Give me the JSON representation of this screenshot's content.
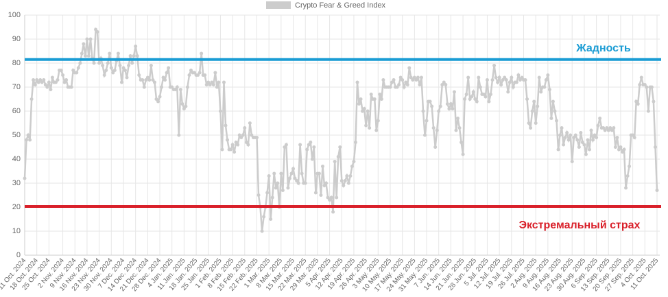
{
  "chart_data": {
    "type": "line",
    "legend": "Crypto Fear & Greed Index",
    "color": "#cccccc",
    "ylim": [
      0,
      100
    ],
    "yticks": [
      0,
      10,
      20,
      30,
      40,
      50,
      60,
      70,
      80,
      90,
      100
    ],
    "grid": true,
    "annotations": [
      {
        "text": "Жадность",
        "value": 81.5,
        "color": "#1a9cd4"
      },
      {
        "text": "Экстремальный страх",
        "value": 20.3,
        "color": "#d9202a"
      }
    ],
    "categories": [
      "11 Oct. 2024",
      null,
      null,
      null,
      null,
      null,
      null,
      "18 Oct. 2024",
      null,
      null,
      null,
      null,
      null,
      null,
      "25 Oct. 2024",
      null,
      null,
      null,
      null,
      null,
      null,
      null,
      "2 Nov. 2024",
      null,
      null,
      null,
      null,
      null,
      null,
      "9 Nov. 2024",
      null,
      null,
      null,
      null,
      null,
      null,
      "16 Nov. 2024",
      null,
      null,
      null,
      null,
      null,
      null,
      "23 Nov. 2024",
      null,
      null,
      null,
      null,
      null,
      null,
      "30 Nov. 2024",
      null,
      null,
      null,
      null,
      null,
      null,
      "7 Dec. 2024",
      null,
      null,
      null,
      null,
      null,
      null,
      "14 Dec. 2024",
      null,
      null,
      null,
      null,
      null,
      null,
      "21 Dec. 2024",
      null,
      null,
      null,
      null,
      null,
      null,
      "28 Dec. 2024",
      null,
      null,
      null,
      null,
      null,
      null,
      "4 Jan. 2025",
      null,
      null,
      null,
      null,
      null,
      null,
      "11 Jan. 2025",
      null,
      null,
      null,
      null,
      null,
      null,
      "18 Jan. 2025",
      null,
      null,
      null,
      null,
      null,
      null,
      "25 Jan. 2025",
      null,
      null,
      null,
      null,
      null,
      null,
      "1 Feb. 2025",
      null,
      null,
      null,
      null,
      null,
      null,
      "8 Feb. 2025",
      null,
      null,
      null,
      null,
      null,
      null,
      "15 Feb. 2025",
      null,
      null,
      null,
      null,
      null,
      null,
      "22 Feb. 2025",
      null,
      null,
      null,
      null,
      null,
      null,
      "1 Mar. 2025",
      null,
      null,
      null,
      null,
      null,
      null,
      "8 Mar. 2025",
      null,
      null,
      null,
      null,
      null,
      null,
      "15 Mar. 2025",
      null,
      null,
      null,
      null,
      null,
      null,
      "22 Mar. 2025",
      null,
      null,
      null,
      null,
      null,
      null,
      "29 Mar. 2025",
      null,
      null,
      null,
      null,
      null,
      null,
      "5 Apr. 2025",
      null,
      null,
      null,
      null,
      null,
      null,
      "12 Apr. 2025",
      null,
      null,
      null,
      null,
      null,
      null,
      "19 Apr. 2025",
      null,
      null,
      null,
      null,
      null,
      null,
      "26 Apr. 2025",
      null,
      null,
      null,
      null,
      null,
      null,
      "3 May. 2025",
      null,
      null,
      null,
      null,
      null,
      null,
      "10 May. 2025",
      null,
      null,
      null,
      null,
      null,
      null,
      "17 May. 2025",
      null,
      null,
      null,
      null,
      null,
      null,
      "24 May. 2025",
      null,
      null,
      null,
      null,
      null,
      null,
      "31 May. 2025",
      null,
      null,
      null,
      null,
      null,
      null,
      "7 Jun. 2025",
      null,
      null,
      null,
      null,
      null,
      null,
      "14 Jun. 2025",
      null,
      null,
      null,
      null,
      null,
      null,
      "21 Jun. 2025",
      null,
      null,
      null,
      null,
      null,
      null,
      "28 Jun. 2025",
      null,
      null,
      null,
      null,
      null,
      null,
      "5 Jul. 2025",
      null,
      null,
      null,
      null,
      null,
      null,
      "12 Jul. 2025",
      null,
      null,
      null,
      null,
      null,
      null,
      "19 Jul. 2025",
      null,
      null,
      null,
      null,
      null,
      null,
      "26 Jul. 2025",
      null,
      null,
      null,
      null,
      null,
      null,
      "2 Aug. 2025",
      null,
      null,
      null,
      null,
      null,
      null,
      "9 Aug. 2025",
      null,
      null,
      null,
      null,
      null,
      null,
      "16 Aug. 2025",
      null,
      null,
      null,
      null,
      null,
      null,
      "23 Aug. 2025",
      null,
      null,
      null,
      null,
      null,
      null,
      "30 Aug. 2025",
      null,
      null,
      null,
      null,
      null,
      null,
      "6 Sep. 2025",
      null,
      null,
      null,
      null,
      null,
      null,
      "13 Sep. 2025",
      null,
      null,
      null,
      null,
      null,
      null,
      "20 Sep. 2025",
      null,
      null,
      null,
      null,
      null,
      null,
      "27 Sep. 2025",
      null,
      null,
      null,
      null,
      null,
      null,
      "4 Oct. 2025",
      null,
      null,
      null,
      null,
      null,
      null,
      "11 Oct. 2025"
    ],
    "values": [
      32,
      48,
      50,
      48,
      65,
      73,
      71,
      73,
      72,
      73,
      72,
      73,
      71,
      70,
      72,
      69,
      74,
      72,
      72,
      73,
      77,
      77,
      75,
      72,
      73,
      70,
      70,
      70,
      77,
      76,
      76,
      78,
      80,
      84,
      88,
      83,
      90,
      83,
      90,
      82,
      80,
      94,
      93,
      80,
      82,
      79,
      75,
      77,
      80,
      84,
      78,
      76,
      77,
      81,
      84,
      79,
      72,
      78,
      77,
      74,
      79,
      83,
      80,
      83,
      87,
      83,
      75,
      73,
      73,
      70,
      73,
      74,
      73,
      79,
      73,
      72,
      65,
      64,
      66,
      70,
      74,
      73,
      76,
      78,
      70,
      70,
      69,
      69,
      70,
      50,
      69,
      63,
      61,
      62,
      70,
      75,
      77,
      76,
      76,
      75,
      75,
      76,
      84,
      75,
      75,
      71,
      72,
      71,
      72,
      71,
      76,
      70,
      72,
      60,
      44,
      72,
      54,
      48,
      44,
      44,
      46,
      43,
      47,
      46,
      50,
      49,
      50,
      53,
      47,
      46,
      55,
      50,
      49,
      49,
      49,
      25,
      20,
      10,
      16,
      20,
      26,
      33,
      15,
      24,
      34,
      28,
      30,
      20,
      34,
      27,
      45,
      46,
      28,
      32,
      34,
      36,
      32,
      31,
      30,
      46,
      34,
      30,
      30,
      44,
      46,
      47,
      40,
      45,
      26,
      34,
      34,
      25,
      37,
      29,
      30,
      24,
      23,
      24,
      18,
      39,
      24,
      41,
      45,
      31,
      29,
      31,
      33,
      30,
      33,
      37,
      39,
      47,
      72,
      63,
      65,
      60,
      61,
      54,
      60,
      53,
      67,
      65,
      65,
      52,
      56,
      67,
      65,
      73,
      70,
      70,
      70,
      70,
      72,
      73,
      70,
      70,
      71,
      74,
      73,
      70,
      72,
      71,
      78,
      74,
      73,
      74,
      73,
      74,
      71,
      74,
      60,
      50,
      56,
      64,
      64,
      62,
      53,
      45,
      52,
      60,
      62,
      71,
      72,
      71,
      63,
      61,
      63,
      61,
      68,
      52,
      57,
      53,
      47,
      42,
      65,
      67,
      74,
      65,
      66,
      68,
      65,
      64,
      74,
      70,
      67,
      67,
      66,
      73,
      64,
      67,
      73,
      79,
      74,
      72,
      74,
      71,
      73,
      74,
      73,
      68,
      72,
      74,
      70,
      72,
      72,
      75,
      73,
      74,
      73,
      73,
      65,
      55,
      53,
      60,
      64,
      55,
      62,
      74,
      68,
      70,
      70,
      73,
      75,
      69,
      57,
      64,
      60,
      56,
      44,
      50,
      53,
      46,
      49,
      51,
      48,
      50,
      39,
      49,
      50,
      48,
      45,
      51,
      47,
      46,
      42,
      48,
      44,
      52,
      48,
      50,
      49,
      54,
      57,
      53,
      53,
      52,
      53,
      52,
      53,
      52,
      53,
      45,
      49,
      44,
      45,
      43,
      44,
      28,
      33,
      37,
      50,
      50,
      49,
      64,
      63,
      71,
      74,
      71,
      71,
      70,
      60,
      70,
      70,
      64,
      45,
      27
    ]
  }
}
